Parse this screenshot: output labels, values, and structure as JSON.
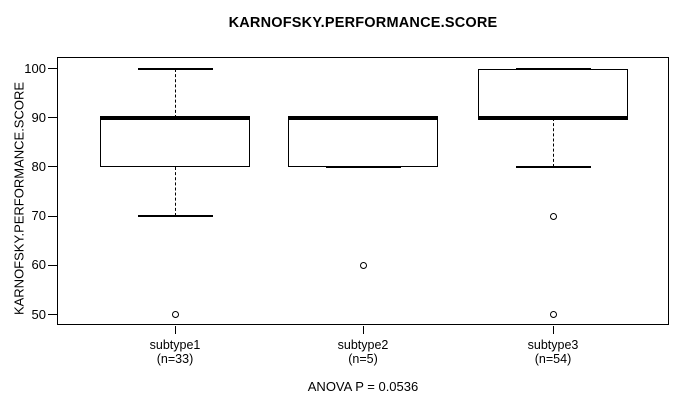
{
  "chart_data": {
    "type": "boxplot",
    "title": "KARNOFSKY.PERFORMANCE.SCORE",
    "ylabel": "KARNOFSKY.PERFORMANCE.SCORE",
    "xlabel": "",
    "annotation": "ANOVA P = 0.0536",
    "ylim": [
      47,
      103
    ],
    "y_ticks": [
      50,
      60,
      70,
      80,
      90,
      100
    ],
    "grid": false,
    "legend": "none",
    "colors": {
      "line": "#000000",
      "box_fill": "#ffffff",
      "background": "#ffffff"
    },
    "groups": [
      {
        "label": "subtype1",
        "n_label": "(n=33)",
        "n": 33,
        "q1": 80,
        "median": 90,
        "q3": 90,
        "whisker_low": 70,
        "whisker_high": 100,
        "outliers": [
          50
        ]
      },
      {
        "label": "subtype2",
        "n_label": "(n=5)",
        "n": 5,
        "q1": 80,
        "median": 90,
        "q3": 90,
        "whisker_low": 80,
        "whisker_high": 90,
        "outliers": [
          60
        ]
      },
      {
        "label": "subtype3",
        "n_label": "(n=54)",
        "n": 54,
        "q1": 90,
        "median": 90,
        "q3": 100,
        "whisker_low": 80,
        "whisker_high": 100,
        "outliers": [
          70,
          50
        ]
      }
    ]
  }
}
